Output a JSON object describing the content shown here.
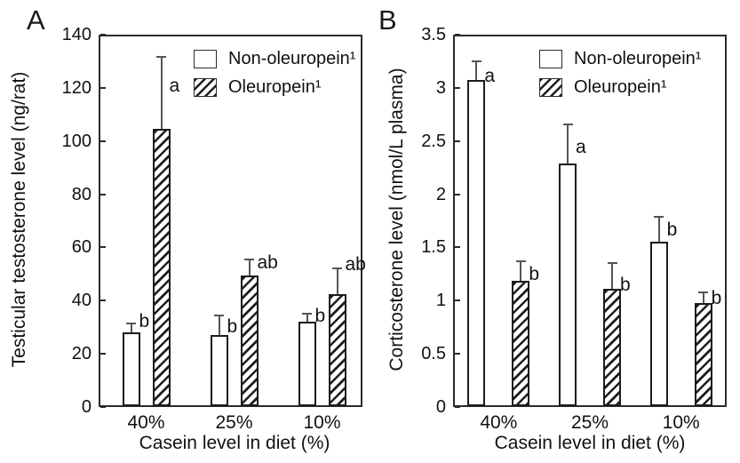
{
  "figure": {
    "background": "#ffffff",
    "text_color": "#111111",
    "axis_color": "#2b2b2b",
    "bar_border_color": "#1c1c1c",
    "error_bar_color": "#555555",
    "bar_fill": "#ffffff",
    "hatch_style": "diagonal-forward-slash"
  },
  "chart_data": [
    {
      "type": "bar",
      "panel_letter": "A",
      "ylabel": "Testicular testosterone level (ng/rat)",
      "xlabel": "Casein level in diet (%)",
      "ylim": [
        0,
        140
      ],
      "ytick_values": [
        0,
        20,
        40,
        60,
        80,
        100,
        120,
        140
      ],
      "ytick_labels": [
        "0",
        "20",
        "40",
        "60",
        "80",
        "100",
        "120",
        "140"
      ],
      "categories": [
        "40%",
        "25%",
        "10%"
      ],
      "grid": false,
      "legend_position": "top-right-inside",
      "series": [
        {
          "name": "Non-oleuropein¹",
          "pattern": "plain",
          "values": [
            28,
            27,
            32
          ],
          "error_top": [
            31.5,
            34.5,
            35
          ],
          "sig_letters": [
            "b",
            "b",
            "b"
          ]
        },
        {
          "name": "Oleuropein¹",
          "pattern": "hatched",
          "values": [
            104.5,
            49.5,
            42.5
          ],
          "error_top": [
            131.5,
            55.5,
            52
          ],
          "sig_letters": [
            "a",
            "ab",
            "ab"
          ]
        }
      ]
    },
    {
      "type": "bar",
      "panel_letter": "B",
      "ylabel": "Corticosterone level (nmol/L plasma)",
      "xlabel": "Casein level in diet (%)",
      "ylim": [
        0,
        3.5
      ],
      "ytick_values": [
        0,
        0.5,
        1,
        1.5,
        2,
        2.5,
        3,
        3.5
      ],
      "ytick_labels": [
        "0",
        "0.5",
        "1",
        "1.5",
        "2",
        "2.5",
        "3",
        "3.5"
      ],
      "categories": [
        "40%",
        "25%",
        "10%"
      ],
      "grid": false,
      "legend_position": "top-right-inside",
      "series": [
        {
          "name": "Non-oleuropein¹",
          "pattern": "plain",
          "values": [
            3.07,
            2.29,
            1.55
          ],
          "error_top": [
            3.25,
            2.66,
            1.79
          ],
          "sig_letters": [
            "a",
            "a",
            "b"
          ]
        },
        {
          "name": "Oleuropein¹",
          "pattern": "hatched",
          "values": [
            1.19,
            1.11,
            0.98
          ],
          "error_top": [
            1.37,
            1.35,
            1.08
          ],
          "sig_letters": [
            "b",
            "b",
            "b"
          ]
        }
      ]
    }
  ]
}
